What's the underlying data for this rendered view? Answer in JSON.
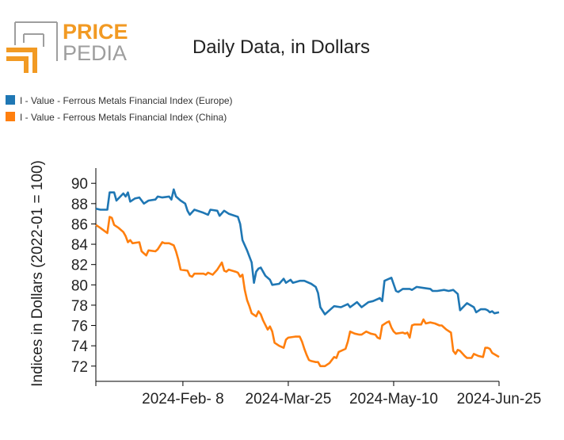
{
  "logo": {
    "word1": "PRICE",
    "word2": "PEDIA",
    "colors": {
      "orange": "#f29a23",
      "gray": "#9e9e9e"
    }
  },
  "chart_data": {
    "type": "line",
    "title": "Daily Data, in Dollars",
    "ylabel": "Indices in Dollars (2022-01 = 100)",
    "xlabel": "",
    "xlim": [
      "2024-01-01",
      "2024-06-25"
    ],
    "ylim": [
      70.5,
      91.5
    ],
    "yticks": [
      72,
      74,
      76,
      78,
      80,
      82,
      84,
      86,
      88,
      90
    ],
    "xticks": [
      {
        "date": "2024-02-08",
        "label": "2024-Feb- 8"
      },
      {
        "date": "2024-03-25",
        "label": "2024-Mar-25"
      },
      {
        "date": "2024-05-10",
        "label": "2024-May-10"
      },
      {
        "date": "2024-06-25",
        "label": "2024-Jun-25"
      }
    ],
    "legend_position": "top-left",
    "series": [
      {
        "name": "I - Value - Ferrous Metals Financial Index (Europe)",
        "color": "#1f77b4",
        "points": [
          [
            "2024-01-01",
            87.5
          ],
          [
            "2024-01-03",
            87.4
          ],
          [
            "2024-01-06",
            87.4
          ],
          [
            "2024-01-07",
            89.1
          ],
          [
            "2024-01-09",
            89.1
          ],
          [
            "2024-01-10",
            88.3
          ],
          [
            "2024-01-13",
            89.0
          ],
          [
            "2024-01-14",
            88.7
          ],
          [
            "2024-01-15",
            89.1
          ],
          [
            "2024-01-16",
            88.2
          ],
          [
            "2024-01-18",
            88.5
          ],
          [
            "2024-01-20",
            88.6
          ],
          [
            "2024-01-22",
            88.0
          ],
          [
            "2024-01-24",
            88.3
          ],
          [
            "2024-01-27",
            88.4
          ],
          [
            "2024-01-28",
            88.7
          ],
          [
            "2024-01-30",
            88.6
          ],
          [
            "2024-02-02",
            88.7
          ],
          [
            "2024-02-03",
            88.4
          ],
          [
            "2024-02-04",
            89.4
          ],
          [
            "2024-02-05",
            88.7
          ],
          [
            "2024-02-07",
            88.3
          ],
          [
            "2024-02-09",
            88.0
          ],
          [
            "2024-02-10",
            87.3
          ],
          [
            "2024-02-11",
            86.9
          ],
          [
            "2024-02-13",
            87.4
          ],
          [
            "2024-02-17",
            87.1
          ],
          [
            "2024-02-19",
            86.9
          ],
          [
            "2024-02-20",
            87.4
          ],
          [
            "2024-02-23",
            87.3
          ],
          [
            "2024-02-24",
            86.8
          ],
          [
            "2024-02-26",
            87.3
          ],
          [
            "2024-02-28",
            87.0
          ],
          [
            "2024-03-03",
            86.7
          ],
          [
            "2024-03-04",
            86.0
          ],
          [
            "2024-03-05",
            84.4
          ],
          [
            "2024-03-07",
            83.4
          ],
          [
            "2024-03-09",
            82.2
          ],
          [
            "2024-03-10",
            80.2
          ],
          [
            "2024-03-11",
            81.3
          ],
          [
            "2024-03-12",
            81.6
          ],
          [
            "2024-03-13",
            81.7
          ],
          [
            "2024-03-15",
            80.9
          ],
          [
            "2024-03-17",
            80.5
          ],
          [
            "2024-03-18",
            80.0
          ],
          [
            "2024-03-21",
            80.1
          ],
          [
            "2024-03-23",
            80.6
          ],
          [
            "2024-03-24",
            80.2
          ],
          [
            "2024-03-26",
            80.5
          ],
          [
            "2024-03-27",
            80.2
          ],
          [
            "2024-03-30",
            80.4
          ],
          [
            "2024-04-01",
            80.4
          ],
          [
            "2024-04-04",
            80.1
          ],
          [
            "2024-04-06",
            79.8
          ],
          [
            "2024-04-07",
            79.2
          ],
          [
            "2024-04-08",
            77.8
          ],
          [
            "2024-04-10",
            77.1
          ],
          [
            "2024-04-12",
            77.5
          ],
          [
            "2024-04-14",
            77.9
          ],
          [
            "2024-04-17",
            77.8
          ],
          [
            "2024-04-20",
            78.1
          ],
          [
            "2024-04-21",
            77.8
          ],
          [
            "2024-04-24",
            78.3
          ],
          [
            "2024-04-26",
            77.8
          ],
          [
            "2024-04-29",
            78.3
          ],
          [
            "2024-05-01",
            78.4
          ],
          [
            "2024-05-04",
            78.7
          ],
          [
            "2024-05-05",
            78.4
          ],
          [
            "2024-05-06",
            80.4
          ],
          [
            "2024-05-09",
            80.7
          ],
          [
            "2024-05-11",
            79.4
          ],
          [
            "2024-05-12",
            79.3
          ],
          [
            "2024-05-14",
            79.6
          ],
          [
            "2024-05-17",
            79.6
          ],
          [
            "2024-05-18",
            79.5
          ],
          [
            "2024-05-20",
            79.8
          ],
          [
            "2024-05-23",
            79.7
          ],
          [
            "2024-05-26",
            79.6
          ],
          [
            "2024-05-27",
            79.4
          ],
          [
            "2024-05-29",
            79.4
          ],
          [
            "2024-06-01",
            79.5
          ],
          [
            "2024-06-03",
            79.4
          ],
          [
            "2024-06-05",
            79.5
          ],
          [
            "2024-06-07",
            79.1
          ],
          [
            "2024-06-08",
            77.5
          ],
          [
            "2024-06-11",
            78.2
          ],
          [
            "2024-06-14",
            77.8
          ],
          [
            "2024-06-15",
            77.3
          ],
          [
            "2024-06-17",
            77.6
          ],
          [
            "2024-06-19",
            77.6
          ],
          [
            "2024-06-20",
            77.5
          ],
          [
            "2024-06-21",
            77.3
          ],
          [
            "2024-06-22",
            77.4
          ],
          [
            "2024-06-23",
            77.2
          ],
          [
            "2024-06-25",
            77.3
          ]
        ]
      },
      {
        "name": "I - Value - Ferrous Metals Financial Index (China)",
        "color": "#ff7f0e",
        "points": [
          [
            "2024-01-01",
            85.9
          ],
          [
            "2024-01-03",
            85.6
          ],
          [
            "2024-01-06",
            85.1
          ],
          [
            "2024-01-07",
            86.7
          ],
          [
            "2024-01-08",
            86.6
          ],
          [
            "2024-01-09",
            85.9
          ],
          [
            "2024-01-11",
            85.6
          ],
          [
            "2024-01-13",
            85.2
          ],
          [
            "2024-01-14",
            84.8
          ],
          [
            "2024-01-15",
            84.2
          ],
          [
            "2024-01-16",
            84.4
          ],
          [
            "2024-01-17",
            84.1
          ],
          [
            "2024-01-20",
            84.2
          ],
          [
            "2024-01-21",
            83.3
          ],
          [
            "2024-01-22",
            83.1
          ],
          [
            "2024-01-23",
            82.9
          ],
          [
            "2024-01-24",
            83.4
          ],
          [
            "2024-01-27",
            83.3
          ],
          [
            "2024-01-28",
            83.5
          ],
          [
            "2024-01-30",
            84.2
          ],
          [
            "2024-01-31",
            84.1
          ],
          [
            "2024-02-02",
            84.1
          ],
          [
            "2024-02-04",
            83.9
          ],
          [
            "2024-02-05",
            83.3
          ],
          [
            "2024-02-06",
            82.5
          ],
          [
            "2024-02-07",
            81.5
          ],
          [
            "2024-02-10",
            81.4
          ],
          [
            "2024-02-11",
            80.9
          ],
          [
            "2024-02-12",
            80.8
          ],
          [
            "2024-02-13",
            81.1
          ],
          [
            "2024-02-17",
            81.1
          ],
          [
            "2024-02-18",
            81.0
          ],
          [
            "2024-02-19",
            81.2
          ],
          [
            "2024-02-21",
            81.0
          ],
          [
            "2024-02-23",
            81.5
          ],
          [
            "2024-02-25",
            82.2
          ],
          [
            "2024-02-26",
            81.4
          ],
          [
            "2024-02-27",
            81.3
          ],
          [
            "2024-02-28",
            81.5
          ],
          [
            "2024-03-02",
            81.3
          ],
          [
            "2024-03-03",
            81.2
          ],
          [
            "2024-03-04",
            80.8
          ],
          [
            "2024-03-05",
            81.0
          ],
          [
            "2024-03-06",
            79.5
          ],
          [
            "2024-03-07",
            78.5
          ],
          [
            "2024-03-08",
            77.9
          ],
          [
            "2024-03-09",
            77.2
          ],
          [
            "2024-03-11",
            76.9
          ],
          [
            "2024-03-12",
            77.4
          ],
          [
            "2024-03-13",
            77.1
          ],
          [
            "2024-03-14",
            76.5
          ],
          [
            "2024-03-16",
            75.6
          ],
          [
            "2024-03-17",
            75.9
          ],
          [
            "2024-03-18",
            75.4
          ],
          [
            "2024-03-19",
            74.3
          ],
          [
            "2024-03-21",
            74.0
          ],
          [
            "2024-03-23",
            73.8
          ],
          [
            "2024-03-24",
            74.6
          ],
          [
            "2024-03-25",
            74.8
          ],
          [
            "2024-03-28",
            74.9
          ],
          [
            "2024-03-30",
            74.9
          ],
          [
            "2024-03-31",
            74.4
          ],
          [
            "2024-04-01",
            73.7
          ],
          [
            "2024-04-02",
            73.1
          ],
          [
            "2024-04-03",
            72.6
          ],
          [
            "2024-04-04",
            72.5
          ],
          [
            "2024-04-06",
            72.4
          ],
          [
            "2024-04-07",
            72.4
          ],
          [
            "2024-04-08",
            72.0
          ],
          [
            "2024-04-10",
            72.0
          ],
          [
            "2024-04-12",
            72.3
          ],
          [
            "2024-04-14",
            72.9
          ],
          [
            "2024-04-15",
            72.8
          ],
          [
            "2024-04-16",
            73.4
          ],
          [
            "2024-04-19",
            73.7
          ],
          [
            "2024-04-20",
            74.4
          ],
          [
            "2024-04-21",
            75.4
          ],
          [
            "2024-04-23",
            75.2
          ],
          [
            "2024-04-25",
            75.1
          ],
          [
            "2024-04-26",
            75.1
          ],
          [
            "2024-04-28",
            75.4
          ],
          [
            "2024-04-30",
            75.2
          ],
          [
            "2024-05-02",
            75.1
          ],
          [
            "2024-05-03",
            74.8
          ],
          [
            "2024-05-04",
            74.7
          ],
          [
            "2024-05-05",
            76.0
          ],
          [
            "2024-05-07",
            76.3
          ],
          [
            "2024-05-08",
            76.4
          ],
          [
            "2024-05-09",
            75.8
          ],
          [
            "2024-05-10",
            75.4
          ],
          [
            "2024-05-11",
            75.2
          ],
          [
            "2024-05-14",
            75.3
          ],
          [
            "2024-05-15",
            75.2
          ],
          [
            "2024-05-16",
            75.3
          ],
          [
            "2024-05-17",
            74.8
          ],
          [
            "2024-05-18",
            76.0
          ],
          [
            "2024-05-19",
            76.1
          ],
          [
            "2024-05-22",
            76.1
          ],
          [
            "2024-05-23",
            76.6
          ],
          [
            "2024-05-24",
            76.2
          ],
          [
            "2024-05-26",
            76.3
          ],
          [
            "2024-05-28",
            76.2
          ],
          [
            "2024-05-30",
            76.0
          ],
          [
            "2024-05-31",
            76.0
          ],
          [
            "2024-06-01",
            75.8
          ],
          [
            "2024-06-02",
            75.6
          ],
          [
            "2024-06-04",
            75.3
          ],
          [
            "2024-06-05",
            73.5
          ],
          [
            "2024-06-06",
            73.2
          ],
          [
            "2024-06-07",
            73.6
          ],
          [
            "2024-06-08",
            73.5
          ],
          [
            "2024-06-10",
            73.0
          ],
          [
            "2024-06-11",
            72.8
          ],
          [
            "2024-06-13",
            72.8
          ],
          [
            "2024-06-14",
            73.2
          ],
          [
            "2024-06-16",
            73.0
          ],
          [
            "2024-06-18",
            72.9
          ],
          [
            "2024-06-19",
            73.8
          ],
          [
            "2024-06-20",
            73.8
          ],
          [
            "2024-06-21",
            73.7
          ],
          [
            "2024-06-22",
            73.3
          ],
          [
            "2024-06-25",
            72.9
          ]
        ]
      }
    ]
  }
}
